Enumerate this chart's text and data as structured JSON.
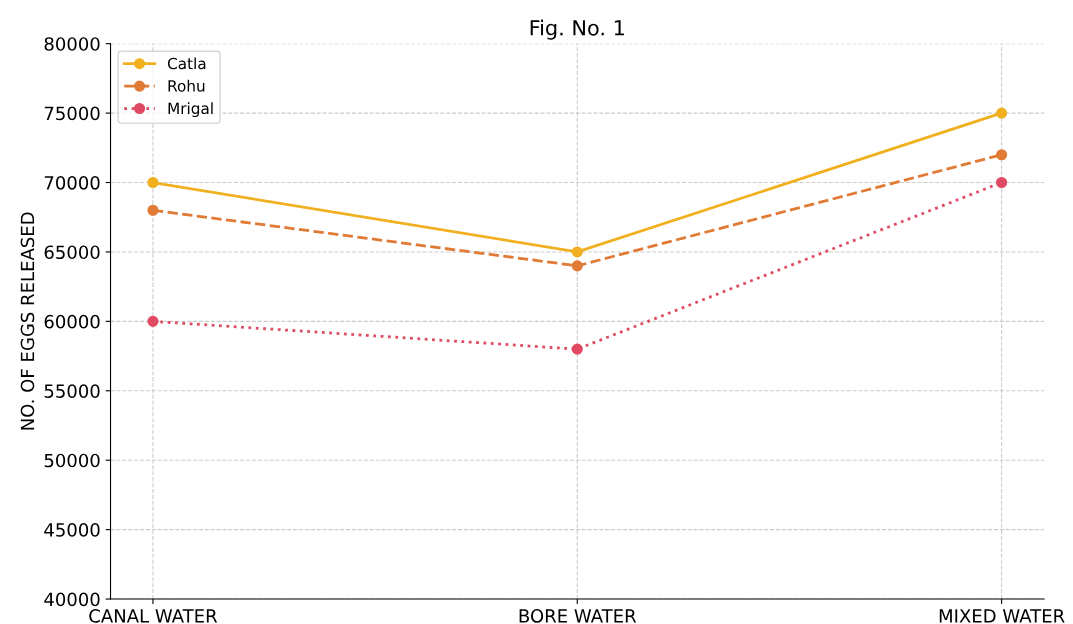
{
  "chart_data": {
    "type": "line",
    "title": "Fig. No. 1",
    "ylabel": "NO. OF EGGS RELEASED",
    "categories": [
      "CANAL WATER",
      "BORE WATER",
      "MIXED WATER"
    ],
    "series": [
      {
        "name": "Catla",
        "color": "#f0b020",
        "values": [
          70000,
          65000,
          75000
        ],
        "line_style": "solid"
      },
      {
        "name": "Rohu",
        "color": "#e07a35",
        "values": [
          68000,
          64000,
          72000
        ],
        "line_style": "dashed"
      },
      {
        "name": "Mrigal",
        "color": "#e04a62",
        "values": [
          60000,
          58000,
          70000
        ],
        "line_style": "dotted"
      }
    ],
    "ylim": [
      40000,
      80000
    ],
    "yticks": [
      40000,
      45000,
      50000,
      55000,
      60000,
      65000,
      70000,
      75000,
      80000
    ],
    "grid": true,
    "legend": "top left",
    "marker": "circle"
  }
}
